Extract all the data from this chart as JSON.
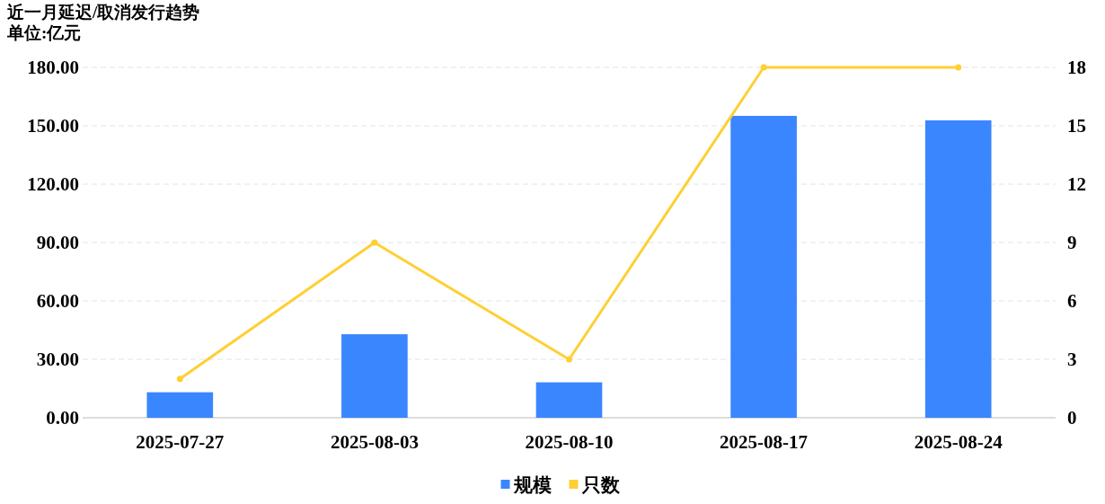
{
  "chart_data": {
    "type": "bar",
    "title": "近一月延迟/取消发行趋势",
    "subtitle": "单位:亿元",
    "categories": [
      "2025-07-27",
      "2025-08-03",
      "2025-08-10",
      "2025-08-17",
      "2025-08-24"
    ],
    "series": [
      {
        "name": "规模",
        "color": "#3a86ff",
        "values": [
          13.1,
          42.9,
          18.2,
          155.1,
          152.8
        ]
      },
      {
        "name": "只数",
        "type": "line",
        "axis": "y2",
        "color": "#ffcf33",
        "values": [
          2,
          9,
          3,
          18,
          18
        ]
      }
    ],
    "ylim": [
      0,
      180
    ],
    "yticks": [
      {
        "value": 0,
        "label": "0.00"
      },
      {
        "value": 30,
        "label": "30.00"
      },
      {
        "value": 60,
        "label": "60.00"
      },
      {
        "value": 90,
        "label": "90.00"
      },
      {
        "value": 120,
        "label": "120.00"
      },
      {
        "value": 150,
        "label": "150.00"
      },
      {
        "value": 180,
        "label": "180.00"
      }
    ],
    "y2lim": [
      0,
      18
    ],
    "y2ticks": [
      0,
      3,
      6,
      9,
      12,
      15,
      18
    ],
    "grid": "y",
    "legend": "bottom",
    "marker": "circle",
    "line_style": "solid"
  }
}
